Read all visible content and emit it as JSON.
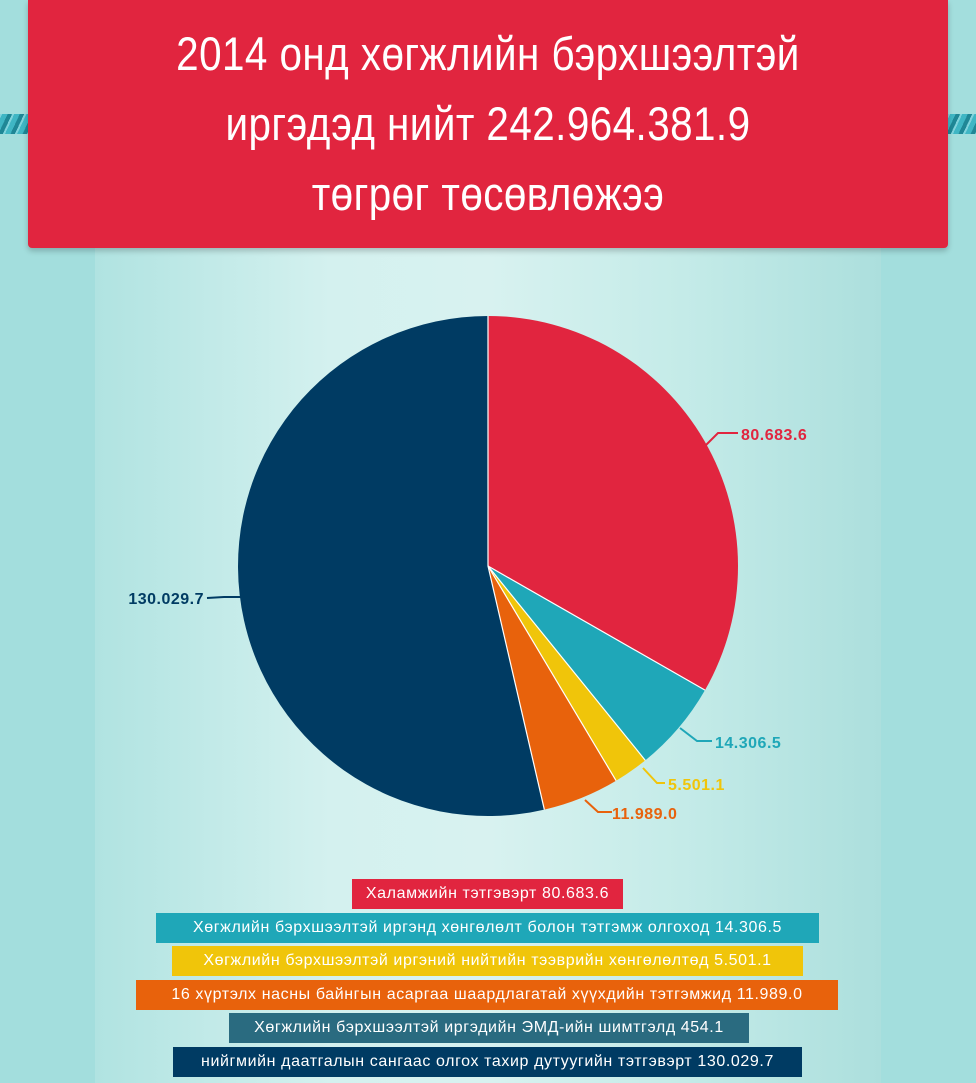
{
  "banner": {
    "title": "2014 онд хөгжлийн бэрхшээлтэй\nиргэдэд нийт 242.964.381.9\nтөгрөг төсөвлөжээ"
  },
  "colors": {
    "banner": "#e1253f",
    "red": "#e1253f",
    "teal": "#1fa7b8",
    "yellow": "#f0c50a",
    "orange": "#e8620c",
    "slate": "#2a6b80",
    "navy": "#003b63"
  },
  "chart_data": {
    "type": "pie",
    "slices": [
      {
        "label": "80.683.6",
        "value": 80683.6,
        "color": "#e1253f"
      },
      {
        "label": "14.306.5",
        "value": 14306.5,
        "color": "#1fa7b8"
      },
      {
        "label": "5.501.1",
        "value": 5501.1,
        "color": "#f0c50a"
      },
      {
        "label": "11.989.0",
        "value": 11989.0,
        "color": "#e8620c"
      },
      {
        "label": "130.029.7",
        "value": 130029.7,
        "color": "#003b63"
      }
    ]
  },
  "legend": [
    {
      "text": "Халамжийн тэтгэвэрт 80.683.6",
      "color": "#e1253f"
    },
    {
      "text": "Хөгжлийн бэрхшээлтэй иргэнд хөнгөлөлт болон тэтгэмж олгоход 14.306.5",
      "color": "#1fa7b8"
    },
    {
      "text": "Хөгжлийн бэрхшээлтэй иргэний нийтийн тээврийн хөнгөлөлтөд 5.501.1",
      "color": "#f0c50a"
    },
    {
      "text": "16 хүртэлх насны байнгын асаргаа шаардлагатай хүүхдийн тэтгэмжид 11.989.0",
      "color": "#e8620c"
    },
    {
      "text": "Хөгжлийн бэрхшээлтэй иргэдийн ЭМД-ийн шимтгэлд 454.1",
      "color": "#2a6b80"
    },
    {
      "text": "нийгмийн даатгалын сангаас олгох тахир дутуугийн тэтгэвэрт 130.029.7",
      "color": "#003b63"
    }
  ]
}
